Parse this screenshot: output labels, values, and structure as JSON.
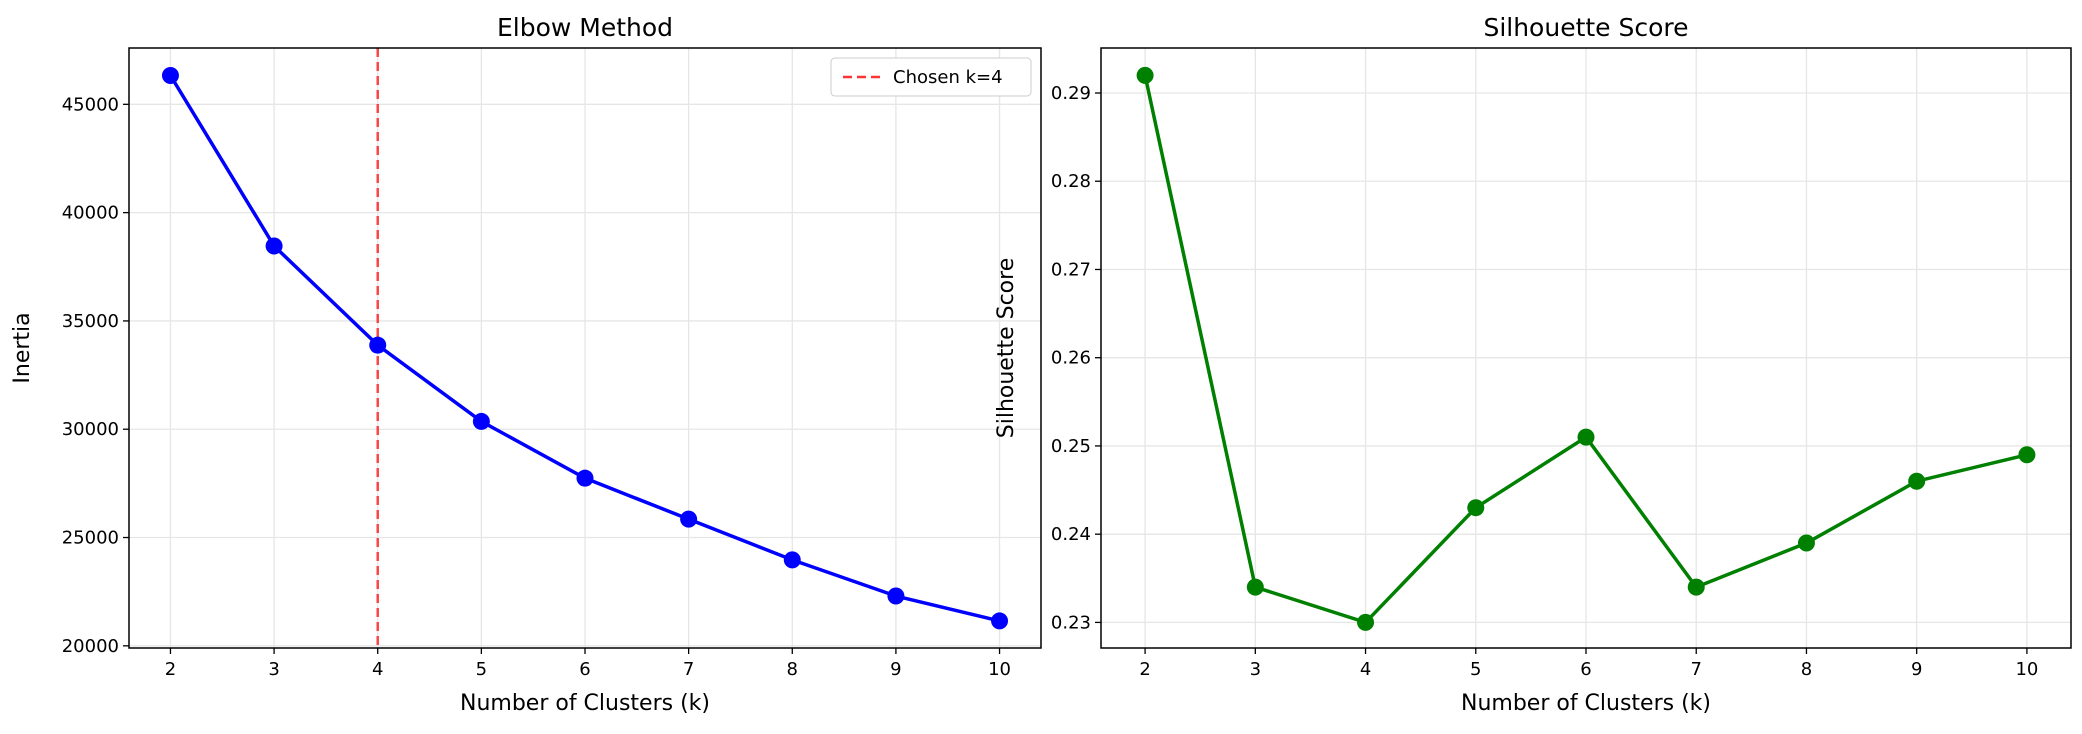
{
  "chart_data": [
    {
      "type": "line",
      "title": "Elbow Method",
      "xlabel": "Number of Clusters (k)",
      "ylabel": "Inertia",
      "x": [
        2,
        3,
        4,
        5,
        6,
        7,
        8,
        9,
        10
      ],
      "values": [
        46330,
        38460,
        33880,
        30360,
        27740,
        25850,
        23970,
        22300,
        21150
      ],
      "xlim": [
        1.6,
        10.4
      ],
      "ylim": [
        19900,
        47600
      ],
      "xticks": [
        2,
        3,
        4,
        5,
        6,
        7,
        8,
        9,
        10
      ],
      "yticks": [
        20000,
        25000,
        30000,
        35000,
        40000,
        45000
      ],
      "color": "#0000ff",
      "grid": true,
      "vline": {
        "x": 4,
        "label": "Chosen k=4",
        "color": "#ff3333"
      },
      "legend": "top-right"
    },
    {
      "type": "line",
      "title": "Silhouette Score",
      "xlabel": "Number of Clusters (k)",
      "ylabel": "Silhouette Score",
      "x": [
        2,
        3,
        4,
        5,
        6,
        7,
        8,
        9,
        10
      ],
      "values": [
        0.292,
        0.234,
        0.23,
        0.243,
        0.251,
        0.234,
        0.239,
        0.246,
        0.249
      ],
      "xlim": [
        1.6,
        10.4
      ],
      "ylim": [
        0.2271,
        0.2951
      ],
      "xticks": [
        2,
        3,
        4,
        5,
        6,
        7,
        8,
        9,
        10
      ],
      "yticks": [
        0.23,
        0.24,
        0.25,
        0.26,
        0.27,
        0.28,
        0.29
      ],
      "color": "#008000",
      "grid": true
    }
  ]
}
